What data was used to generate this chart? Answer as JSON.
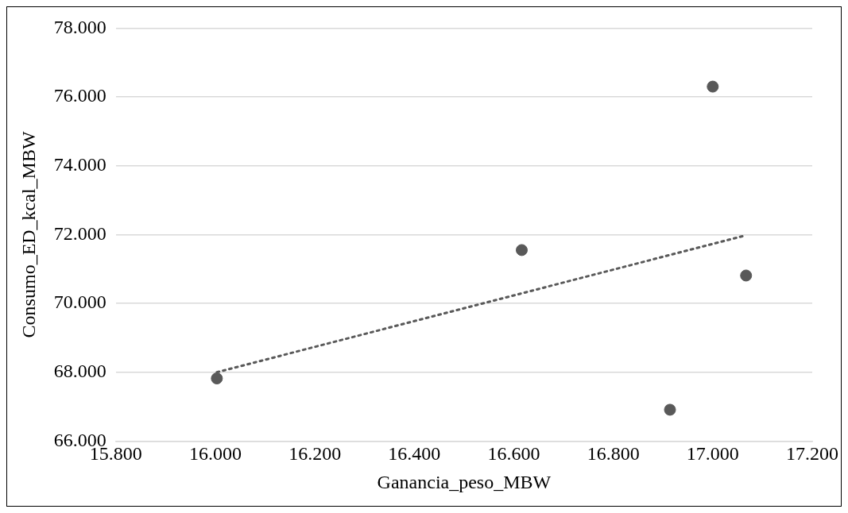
{
  "chart_data": {
    "type": "scatter",
    "xlabel": "Ganancia_peso_MBW",
    "ylabel": "Consumo_ED_kcal_MBW",
    "series": [
      {
        "type": "scatter",
        "color": "#595959",
        "marker": "circle",
        "x": [
          16.003,
          16.616,
          16.914,
          17.0,
          17.067
        ],
        "values": [
          67.82,
          71.55,
          66.91,
          76.3,
          70.81
        ]
      },
      {
        "type": "line",
        "color": "#595959",
        "line_style": "dotted",
        "marker": "none",
        "x": [
          16.003,
          17.067
        ],
        "values": [
          68.0,
          71.98
        ]
      }
    ],
    "xlim": [
      15.8,
      17.2
    ],
    "xticks": [
      {
        "value": 15.8,
        "label": "15.800"
      },
      {
        "value": 16.0,
        "label": "16.000"
      },
      {
        "value": 16.2,
        "label": "16.200"
      },
      {
        "value": 16.4,
        "label": "16.400"
      },
      {
        "value": 16.6,
        "label": "16.600"
      },
      {
        "value": 16.8,
        "label": "16.800"
      },
      {
        "value": 17.0,
        "label": "17.000"
      },
      {
        "value": 17.2,
        "label": "17.200"
      }
    ],
    "ylim": [
      66,
      78
    ],
    "yticks": [
      {
        "value": 66,
        "label": "66.000"
      },
      {
        "value": 68,
        "label": "68.000"
      },
      {
        "value": 70,
        "label": "70.000"
      },
      {
        "value": 72,
        "label": "72.000"
      },
      {
        "value": 74,
        "label": "74.000"
      },
      {
        "value": 76,
        "label": "76.000"
      },
      {
        "value": 78,
        "label": "78.000"
      }
    ],
    "grid": "y",
    "legend": false
  }
}
